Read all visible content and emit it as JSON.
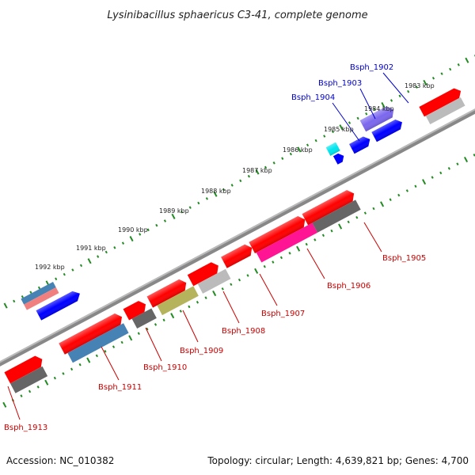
{
  "title": "Lysinibacillus sphaericus C3-41, complete genome",
  "footer": {
    "accession": "Accession: NC_010382",
    "topology": "Topology: circular; Length: 4,639,821 bp; Genes: 4,700"
  },
  "scale_labels": [
    "1983 kbp",
    "1984 kbp",
    "1985 kbp",
    "1986 kbp",
    "1987 kbp",
    "1988 kbp",
    "1989 kbp",
    "1990 kbp",
    "1991 kbp",
    "1992 kbp"
  ],
  "top_strand_labels": [
    "Bsph_1902",
    "Bsph_1903",
    "Bsph_1904"
  ],
  "bottom_strand_labels": [
    "Bsph_1905",
    "Bsph_1906",
    "Bsph_1907",
    "Bsph_1908",
    "Bsph_1909",
    "Bsph_1910",
    "Bsph_1911",
    "Bsph_1913"
  ],
  "colors": {
    "forward_label": "#0000cc",
    "reverse_label": "#cc0000",
    "backbone": "#888888",
    "tick": "#228b22",
    "red": "#ff0000",
    "blue": "#0000ff",
    "purple": "#7b68ee",
    "cyan": "#00e5ee",
    "magenta": "#ff1493",
    "gray": "#666666",
    "lightgray": "#bbbbbb",
    "olive": "#b5b35c",
    "steelblue": "#4682b4",
    "pink": "#f08080"
  }
}
